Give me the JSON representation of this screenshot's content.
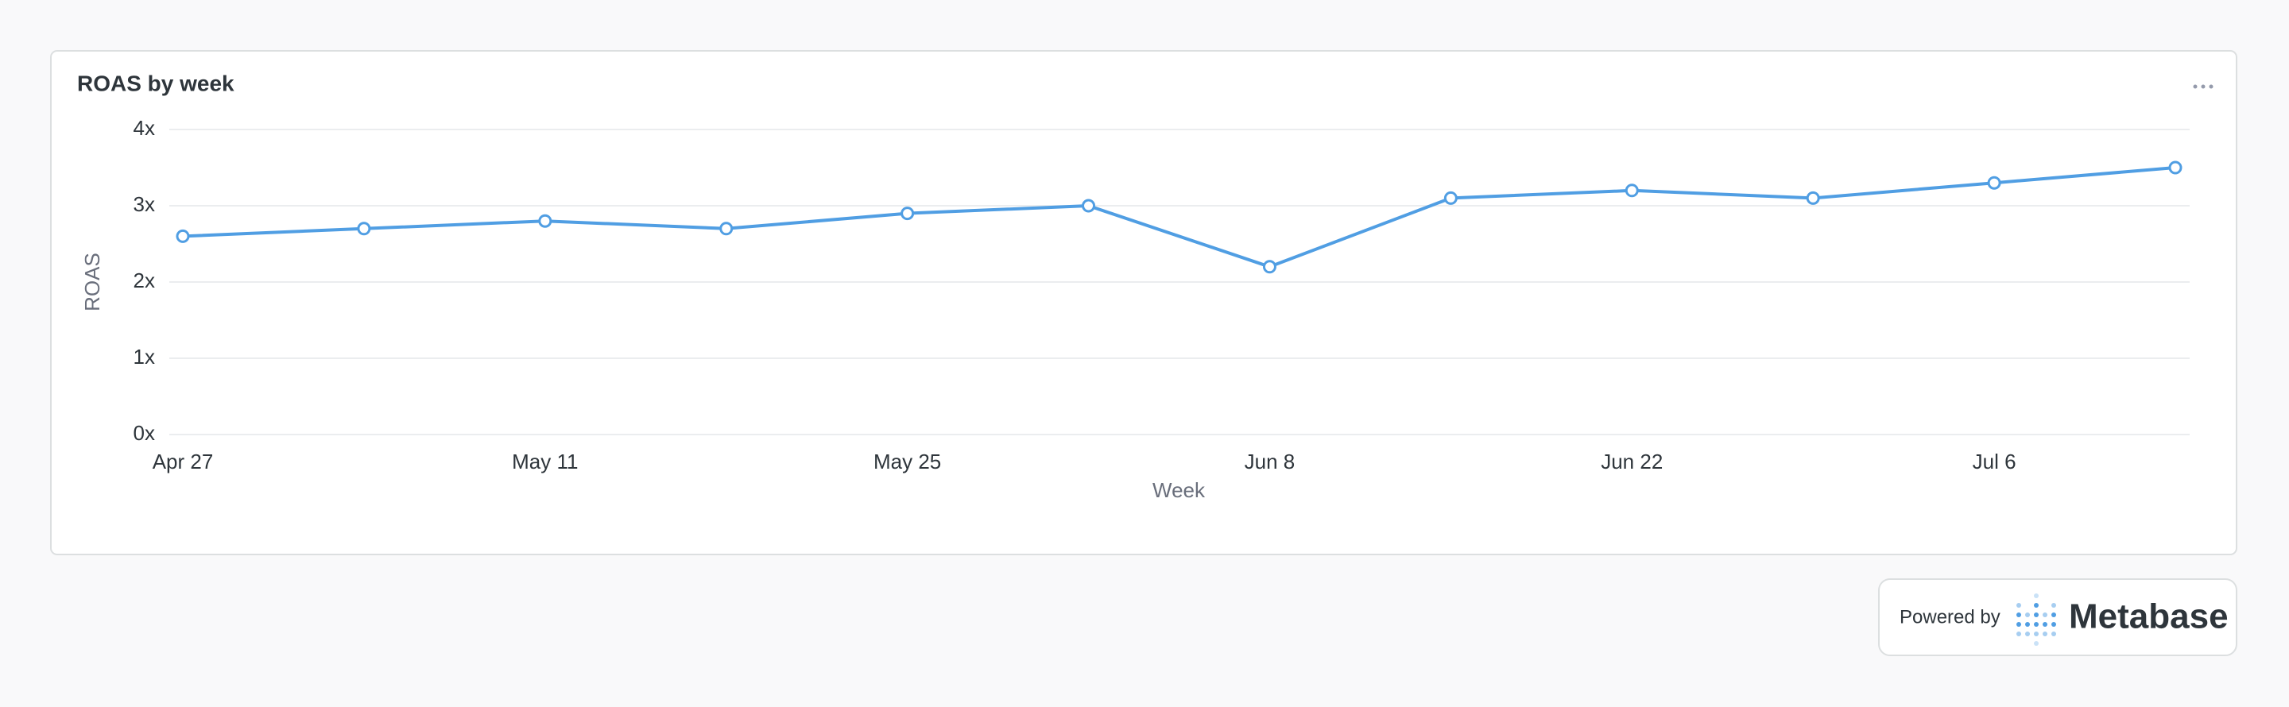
{
  "chart_data": {
    "type": "line",
    "title": "ROAS by week",
    "x_label": "Week",
    "y_label": "ROAS",
    "categories": [
      "Apr 27",
      null,
      "May 11",
      null,
      "May 25",
      null,
      "Jun 8",
      null,
      "Jun 22",
      null,
      "Jul 6",
      null
    ],
    "series": [
      {
        "name": "ROAS",
        "color": "#509ee3",
        "values": [
          2.6,
          2.7,
          2.8,
          2.7,
          2.9,
          3.0,
          2.2,
          3.1,
          3.2,
          3.1,
          3.3,
          3.5
        ]
      }
    ],
    "ylim": [
      0,
      4
    ],
    "yticks": [
      {
        "value": 0,
        "label": "0x"
      },
      {
        "value": 1,
        "label": "1x"
      },
      {
        "value": 2,
        "label": "2x"
      },
      {
        "value": 3,
        "label": "3x"
      },
      {
        "value": 4,
        "label": "4x"
      }
    ],
    "grid": true
  },
  "footer": {
    "powered_by": "Powered by",
    "brand": "Metabase"
  }
}
